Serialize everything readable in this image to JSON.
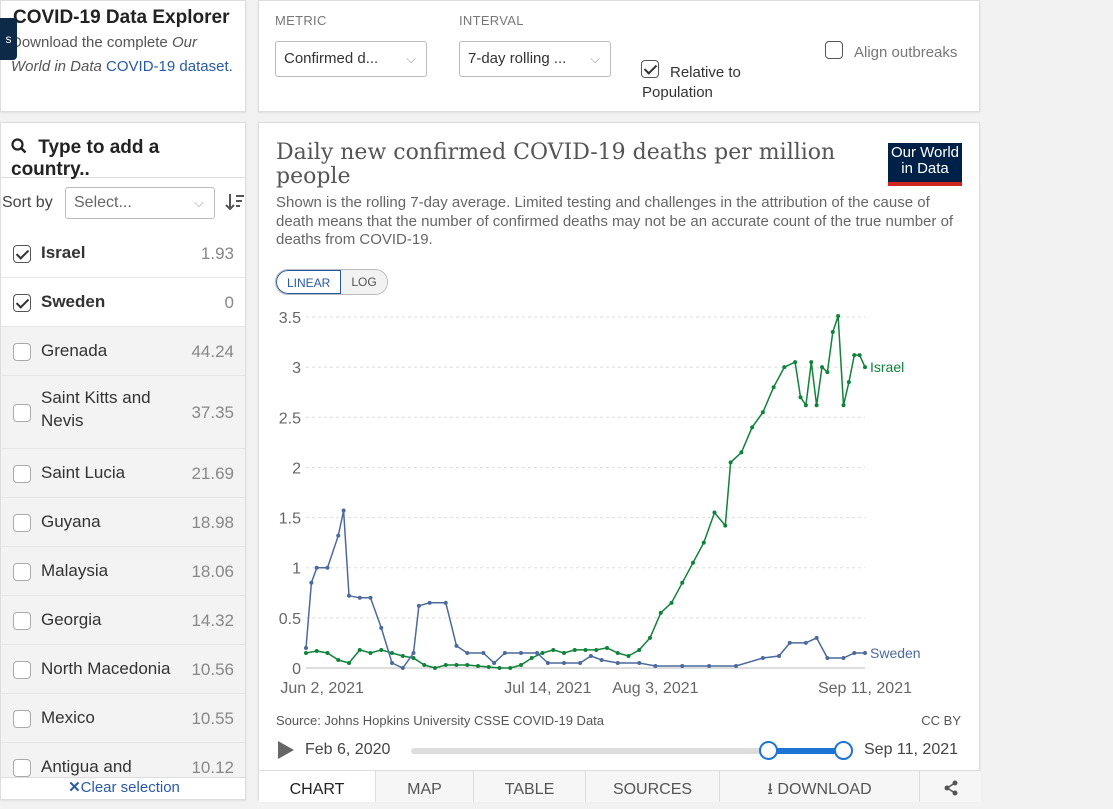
{
  "intro": {
    "side_tab": "s",
    "title": "COVID-19 Data Explorer",
    "text_1": "Download the complete ",
    "text_italic": "Our World in Data",
    "link": "COVID-19",
    "text_2": "dataset."
  },
  "controls": {
    "metric_label": "METRIC",
    "metric_value": "Confirmed d...",
    "interval_label": "INTERVAL",
    "interval_value": "7-day rolling ...",
    "relative_label_1": "Relative to",
    "relative_label_2": "Population",
    "relative_checked": true,
    "align_label": "Align outbreaks",
    "align_checked": false
  },
  "sidebar": {
    "search_placeholder": "Type to add a country..",
    "sort_label": "Sort by",
    "sort_value": "Select...",
    "countries": [
      {
        "name": "Israel",
        "value": "1.93",
        "checked": true
      },
      {
        "name": "Sweden",
        "value": "0",
        "checked": true
      },
      {
        "name": "Grenada",
        "value": "44.24",
        "checked": false
      },
      {
        "name": "Saint Kitts and Nevis",
        "value": "37.35",
        "checked": false
      },
      {
        "name": "Saint Lucia",
        "value": "21.69",
        "checked": false
      },
      {
        "name": "Guyana",
        "value": "18.98",
        "checked": false
      },
      {
        "name": "Malaysia",
        "value": "18.06",
        "checked": false
      },
      {
        "name": "Georgia",
        "value": "14.32",
        "checked": false
      },
      {
        "name": "North Macedonia",
        "value": "10.56",
        "checked": false
      },
      {
        "name": "Mexico",
        "value": "10.55",
        "checked": false
      },
      {
        "name": "Antigua and",
        "value": "10.12",
        "checked": false
      }
    ],
    "clear_label": "Clear selection"
  },
  "chart": {
    "title": "Daily new confirmed COVID-19 deaths per million people",
    "subtitle": "Shown is the rolling 7-day average. Limited testing and challenges in the attribution of the cause of death means that the number of confirmed deaths may not be an accurate count of the true number of deaths from COVID-19.",
    "logo_line1": "Our World",
    "logo_line2": "in Data",
    "scale_linear": "LINEAR",
    "scale_log": "LOG",
    "source": "Source: Johns Hopkins University CSSE COVID-19 Data",
    "license": "CC BY",
    "timeline_start": "Feb 6, 2020",
    "timeline_end": "Sep 11, 2021",
    "colors": {
      "israel": "#11823b",
      "sweden": "#4c6a9c"
    }
  },
  "tabs": [
    "CHART",
    "MAP",
    "TABLE",
    "SOURCES",
    "DOWNLOAD"
  ],
  "chart_data": {
    "type": "line",
    "title": "Daily new confirmed COVID-19 deaths per million people",
    "x_tick_labels": [
      "Jun 2, 2021",
      "Jul 14, 2021",
      "Aug 3, 2021",
      "Sep 11, 2021"
    ],
    "y_ticks": [
      0,
      0.5,
      1,
      1.5,
      2,
      2.5,
      3,
      3.5
    ],
    "ylim": [
      0,
      3.5
    ],
    "xlim": [
      "2021-05-30",
      "2021-09-11"
    ],
    "grid": true,
    "series": [
      {
        "name": "Israel",
        "color": "#11823b",
        "points": [
          [
            "2021-05-30",
            0.15
          ],
          [
            "2021-06-01",
            0.17
          ],
          [
            "2021-06-03",
            0.15
          ],
          [
            "2021-06-05",
            0.08
          ],
          [
            "2021-06-07",
            0.05
          ],
          [
            "2021-06-09",
            0.18
          ],
          [
            "2021-06-11",
            0.15
          ],
          [
            "2021-06-13",
            0.18
          ],
          [
            "2021-06-15",
            0.15
          ],
          [
            "2021-06-17",
            0.12
          ],
          [
            "2021-06-19",
            0.1
          ],
          [
            "2021-06-21",
            0.03
          ],
          [
            "2021-06-23",
            0.0
          ],
          [
            "2021-06-25",
            0.03
          ],
          [
            "2021-06-27",
            0.03
          ],
          [
            "2021-06-29",
            0.03
          ],
          [
            "2021-07-01",
            0.02
          ],
          [
            "2021-07-03",
            0.01
          ],
          [
            "2021-07-05",
            0.0
          ],
          [
            "2021-07-07",
            0.0
          ],
          [
            "2021-07-09",
            0.03
          ],
          [
            "2021-07-11",
            0.1
          ],
          [
            "2021-07-13",
            0.15
          ],
          [
            "2021-07-15",
            0.18
          ],
          [
            "2021-07-17",
            0.15
          ],
          [
            "2021-07-19",
            0.18
          ],
          [
            "2021-07-21",
            0.18
          ],
          [
            "2021-07-23",
            0.18
          ],
          [
            "2021-07-25",
            0.2
          ],
          [
            "2021-07-27",
            0.15
          ],
          [
            "2021-07-29",
            0.12
          ],
          [
            "2021-07-31",
            0.18
          ],
          [
            "2021-08-02",
            0.3
          ],
          [
            "2021-08-04",
            0.55
          ],
          [
            "2021-08-06",
            0.65
          ],
          [
            "2021-08-08",
            0.85
          ],
          [
            "2021-08-10",
            1.05
          ],
          [
            "2021-08-12",
            1.25
          ],
          [
            "2021-08-14",
            1.55
          ],
          [
            "2021-08-16",
            1.42
          ],
          [
            "2021-08-17",
            2.05
          ],
          [
            "2021-08-19",
            2.15
          ],
          [
            "2021-08-21",
            2.4
          ],
          [
            "2021-08-23",
            2.55
          ],
          [
            "2021-08-25",
            2.8
          ],
          [
            "2021-08-27",
            3.0
          ],
          [
            "2021-08-29",
            3.05
          ],
          [
            "2021-08-30",
            2.7
          ],
          [
            "2021-08-31",
            2.62
          ],
          [
            "2021-09-01",
            3.05
          ],
          [
            "2021-09-02",
            2.62
          ],
          [
            "2021-09-03",
            3.0
          ],
          [
            "2021-09-04",
            2.95
          ],
          [
            "2021-09-05",
            3.35
          ],
          [
            "2021-09-06",
            3.51
          ],
          [
            "2021-09-07",
            2.62
          ],
          [
            "2021-09-08",
            2.85
          ],
          [
            "2021-09-09",
            3.12
          ],
          [
            "2021-09-10",
            3.12
          ],
          [
            "2021-09-11",
            3.0
          ]
        ]
      },
      {
        "name": "Sweden",
        "color": "#4c6a9c",
        "points": [
          [
            "2021-05-30",
            0.2
          ],
          [
            "2021-05-31",
            0.85
          ],
          [
            "2021-06-01",
            1.0
          ],
          [
            "2021-06-03",
            1.0
          ],
          [
            "2021-06-05",
            1.32
          ],
          [
            "2021-06-06",
            1.57
          ],
          [
            "2021-06-07",
            0.72
          ],
          [
            "2021-06-09",
            0.7
          ],
          [
            "2021-06-11",
            0.7
          ],
          [
            "2021-06-13",
            0.4
          ],
          [
            "2021-06-15",
            0.05
          ],
          [
            "2021-06-17",
            0.0
          ],
          [
            "2021-06-19",
            0.15
          ],
          [
            "2021-06-20",
            0.62
          ],
          [
            "2021-06-22",
            0.65
          ],
          [
            "2021-06-25",
            0.65
          ],
          [
            "2021-06-27",
            0.22
          ],
          [
            "2021-06-29",
            0.15
          ],
          [
            "2021-07-02",
            0.15
          ],
          [
            "2021-07-04",
            0.05
          ],
          [
            "2021-07-06",
            0.15
          ],
          [
            "2021-07-09",
            0.15
          ],
          [
            "2021-07-12",
            0.15
          ],
          [
            "2021-07-14",
            0.05
          ],
          [
            "2021-07-17",
            0.05
          ],
          [
            "2021-07-20",
            0.05
          ],
          [
            "2021-07-22",
            0.12
          ],
          [
            "2021-07-24",
            0.08
          ],
          [
            "2021-07-27",
            0.05
          ],
          [
            "2021-07-31",
            0.05
          ],
          [
            "2021-08-03",
            0.02
          ],
          [
            "2021-08-08",
            0.02
          ],
          [
            "2021-08-13",
            0.02
          ],
          [
            "2021-08-18",
            0.02
          ],
          [
            "2021-08-23",
            0.1
          ],
          [
            "2021-08-26",
            0.12
          ],
          [
            "2021-08-28",
            0.25
          ],
          [
            "2021-08-31",
            0.25
          ],
          [
            "2021-09-02",
            0.3
          ],
          [
            "2021-09-04",
            0.1
          ],
          [
            "2021-09-07",
            0.1
          ],
          [
            "2021-09-09",
            0.15
          ],
          [
            "2021-09-11",
            0.15
          ]
        ]
      }
    ]
  }
}
